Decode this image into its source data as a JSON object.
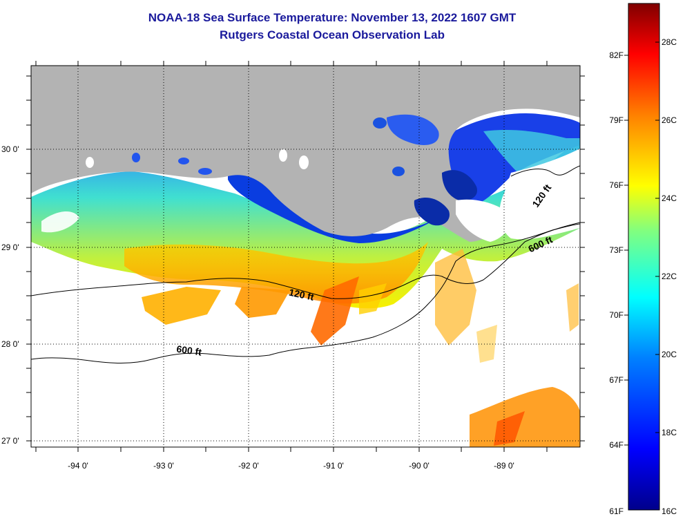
{
  "title": {
    "line1": "NOAA-18 Sea Surface Temperature:  November 13, 2022 1607 GMT",
    "line2": "Rutgers Coastal Ocean Observation Lab"
  },
  "map": {
    "lat_labels": [
      "30 0'",
      "29 0'",
      "28 0'",
      "27 0'"
    ],
    "lon_labels": [
      "-94 0'",
      "-93 0'",
      "-92 0'",
      "-91 0'",
      "-90 0'",
      "-89 0'"
    ],
    "contour_labels": {
      "c120_east": "120 ft",
      "c600_east": "600 ft",
      "c120_mid": "120 ft",
      "c600_west": "600 ft"
    },
    "land_color": "#b3b3b3",
    "no_data_color": "#ffffff"
  },
  "colorbar": {
    "fahrenheit_labels": [
      "82F",
      "79F",
      "76F",
      "73F",
      "70F",
      "67F",
      "64F",
      "61F"
    ],
    "celsius_labels": [
      "28C",
      "26C",
      "24C",
      "22C",
      "20C",
      "18C",
      "16C"
    ],
    "range_c": [
      16,
      29
    ],
    "palette": [
      "#00008b",
      "#0000ff",
      "#0080ff",
      "#00ffff",
      "#80ff80",
      "#ffff00",
      "#ff8000",
      "#ff0000",
      "#800000"
    ]
  }
}
